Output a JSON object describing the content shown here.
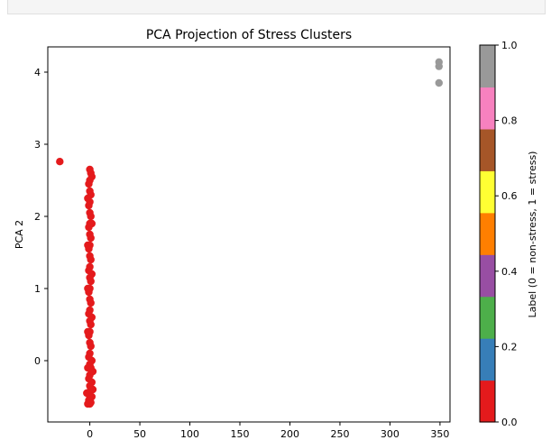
{
  "chart_data": {
    "type": "scatter",
    "title": "PCA Projection of Stress Clusters",
    "xlabel": "",
    "ylabel": "PCA 2",
    "xlim": [
      -42,
      360
    ],
    "ylim": [
      -0.85,
      4.35
    ],
    "x_ticks": [
      "0",
      "50",
      "100",
      "150",
      "200",
      "250",
      "300",
      "350"
    ],
    "y_ticks": [
      "0",
      "1",
      "2",
      "3",
      "4"
    ],
    "grid": false,
    "colorbar": {
      "label": "Label (0 = non-stress, 1 = stress)",
      "range": [
        0.0,
        1.0
      ],
      "tick_labels": [
        "0.0",
        "0.2",
        "0.4",
        "0.6",
        "0.8",
        "1.0"
      ],
      "colormap": [
        "#e41a1c",
        "#377eb8",
        "#4daf4a",
        "#984ea3",
        "#ff7f00",
        "#ffff33",
        "#a65628",
        "#f781bf",
        "#999999"
      ]
    },
    "series": [
      {
        "label_value": 0,
        "color": "#e41a1c",
        "points": [
          [
            -30,
            2.76
          ],
          [
            0,
            2.65
          ],
          [
            0,
            2.5
          ],
          [
            0,
            2.35
          ],
          [
            0,
            2.2
          ],
          [
            0,
            2.05
          ],
          [
            0,
            1.9
          ],
          [
            0,
            1.75
          ],
          [
            0,
            1.6
          ],
          [
            0,
            1.45
          ],
          [
            0,
            1.3
          ],
          [
            0,
            1.15
          ],
          [
            0,
            1.0
          ],
          [
            0,
            0.85
          ],
          [
            0,
            0.7
          ],
          [
            0,
            0.55
          ],
          [
            0,
            0.4
          ],
          [
            0,
            0.25
          ],
          [
            0,
            0.1
          ],
          [
            0,
            -0.05
          ],
          [
            0,
            -0.2
          ],
          [
            0,
            -0.35
          ],
          [
            0,
            -0.5
          ],
          [
            0,
            -0.6
          ],
          [
            1,
            2.6
          ],
          [
            1,
            2.3
          ],
          [
            1,
            2.0
          ],
          [
            1,
            1.7
          ],
          [
            1,
            1.4
          ],
          [
            1,
            1.1
          ],
          [
            1,
            0.8
          ],
          [
            1,
            0.5
          ],
          [
            1,
            0.2
          ],
          [
            1,
            -0.1
          ],
          [
            1,
            -0.4
          ],
          [
            1,
            -0.58
          ],
          [
            -1,
            2.45
          ],
          [
            -1,
            2.15
          ],
          [
            -1,
            1.85
          ],
          [
            -1,
            1.55
          ],
          [
            -1,
            1.25
          ],
          [
            -1,
            0.95
          ],
          [
            -1,
            0.65
          ],
          [
            -1,
            0.35
          ],
          [
            -1,
            0.05
          ],
          [
            -1,
            -0.25
          ],
          [
            -1,
            -0.55
          ],
          [
            -2,
            2.25
          ],
          [
            -2,
            1.6
          ],
          [
            -2,
            1.0
          ],
          [
            -2,
            0.4
          ],
          [
            -2,
            -0.1
          ],
          [
            -2,
            -0.45
          ],
          [
            -2,
            -0.6
          ],
          [
            2,
            2.55
          ],
          [
            2,
            1.9
          ],
          [
            2,
            1.2
          ],
          [
            2,
            0.6
          ],
          [
            2,
            0.0
          ],
          [
            2,
            -0.3
          ],
          [
            2,
            -0.5
          ],
          [
            3,
            -0.15
          ],
          [
            3,
            -0.4
          ],
          [
            -3,
            -0.45
          ]
        ]
      },
      {
        "label_value": 1,
        "color": "#999999",
        "points": [
          [
            349,
            4.14
          ],
          [
            349,
            4.08
          ],
          [
            349,
            3.85
          ]
        ]
      }
    ]
  }
}
